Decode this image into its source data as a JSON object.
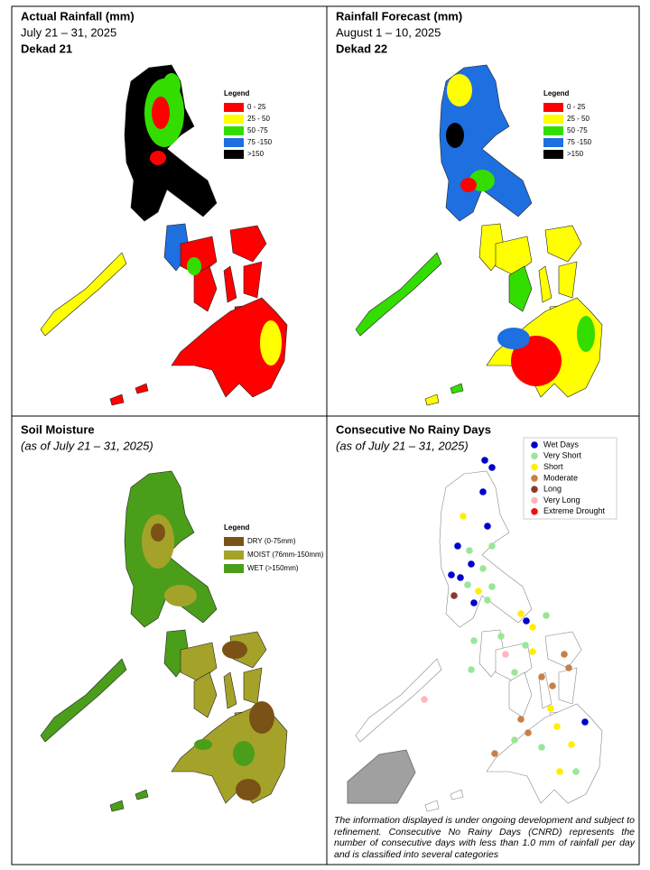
{
  "panels": [
    {
      "title": "Actual Rainfall (mm)",
      "subtitle": "July 21 – 31, 2025",
      "dekad": "Dekad 21",
      "legend": {
        "title": "Legend",
        "items": [
          {
            "label": "0 - 25",
            "color": "#ff0000"
          },
          {
            "label": "25 - 50",
            "color": "#ffff00"
          },
          {
            "label": "50 -75",
            "color": "#33dd00"
          },
          {
            "label": "75 -150",
            "color": "#1e6fe0"
          },
          {
            "label": ">150",
            "color": "#000000"
          }
        ]
      }
    },
    {
      "title": "Rainfall Forecast (mm)",
      "subtitle": "August 1 – 10, 2025",
      "dekad": "Dekad 22",
      "legend": {
        "title": "Legend",
        "items": [
          {
            "label": "0 - 25",
            "color": "#ff0000"
          },
          {
            "label": "25 - 50",
            "color": "#ffff00"
          },
          {
            "label": "50 -75",
            "color": "#33dd00"
          },
          {
            "label": "75 -150",
            "color": "#1e6fe0"
          },
          {
            "label": ">150",
            "color": "#000000"
          }
        ]
      }
    },
    {
      "title": "Soil Moisture",
      "subtitle": "(as of July 21 – 31, 2025)",
      "legend": {
        "title": "Legend",
        "items": [
          {
            "label": "DRY (0-75mm)",
            "color": "#7a5218"
          },
          {
            "label": "MOIST (76mm-150mm)",
            "color": "#a5a22a"
          },
          {
            "label": "WET (>150mm)",
            "color": "#4a9e1a"
          }
        ]
      }
    },
    {
      "title": "Consecutive No Rainy Days",
      "subtitle": "(as of July 21 – 31, 2025)",
      "legend": {
        "items": [
          {
            "label": "Wet Days",
            "color": "#0000cc"
          },
          {
            "label": "Very Short",
            "color": "#99e699"
          },
          {
            "label": "Short",
            "color": "#ffee00"
          },
          {
            "label": "Moderate",
            "color": "#c8804a"
          },
          {
            "label": "Long",
            "color": "#8b3a2a"
          },
          {
            "label": "Very Long",
            "color": "#ffb6c1"
          },
          {
            "label": "Extreme Drought",
            "color": "#ee1111"
          }
        ]
      },
      "note": "The information displayed is under ongoing development and subject to refinement. Consecutive No Rainy Days (CNRD) represents the number of consecutive days with less than 1.0 mm of rainfall per day and is classified into several categories"
    }
  ]
}
